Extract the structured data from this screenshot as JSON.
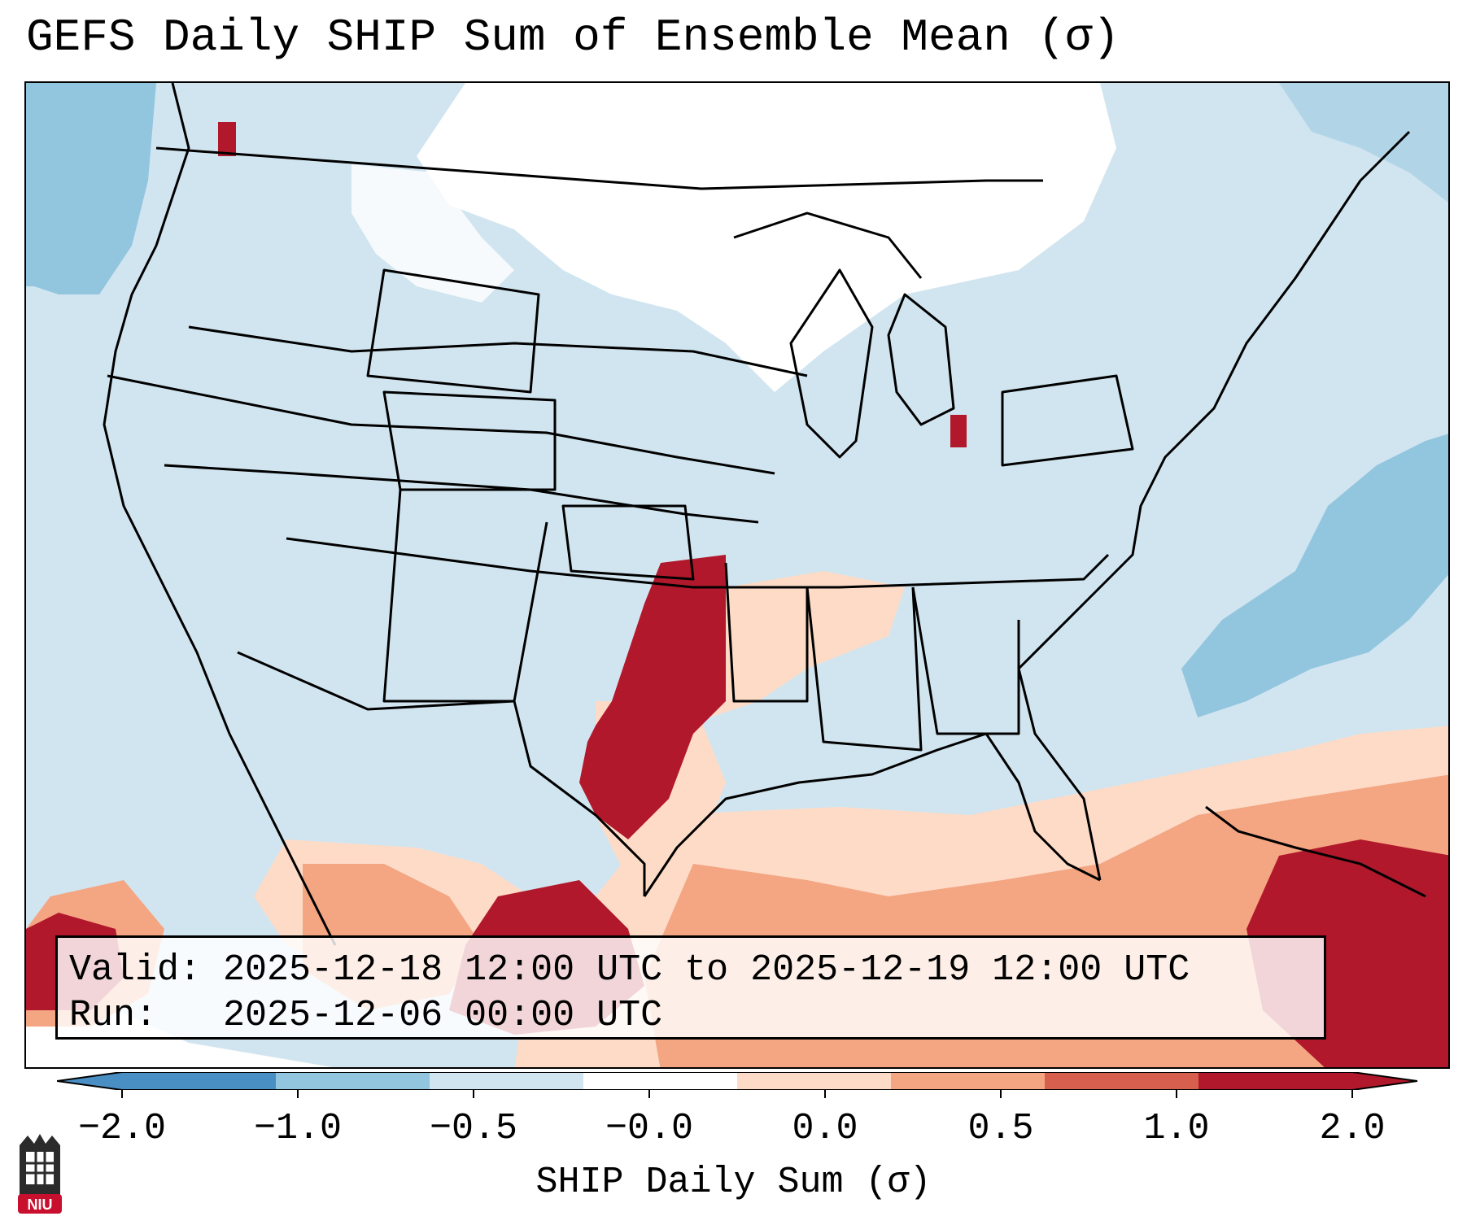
{
  "title": "GEFS Daily SHIP Sum of Ensemble Mean (σ)",
  "info": {
    "valid_label": "Valid:",
    "valid_value": "2025-12-18 12:00 UTC to 2025-12-19 12:00 UTC",
    "run_label": "Run:",
    "run_value": "2025-12-06 00:00 UTC"
  },
  "colorbar": {
    "label": "SHIP Daily Sum (σ)",
    "ticks": [
      "−2.0",
      "−1.0",
      "−0.5",
      "−0.0",
      "0.0",
      "0.5",
      "1.0",
      "2.0"
    ],
    "colors": [
      "#4a8fc4",
      "#92c5de",
      "#d1e5f0",
      "#ffffff",
      "#fddbc7",
      "#f4a582",
      "#d6604d",
      "#b2182b"
    ],
    "extend": "both"
  },
  "logo": {
    "text": "NIU",
    "color": "#c8102e"
  }
}
